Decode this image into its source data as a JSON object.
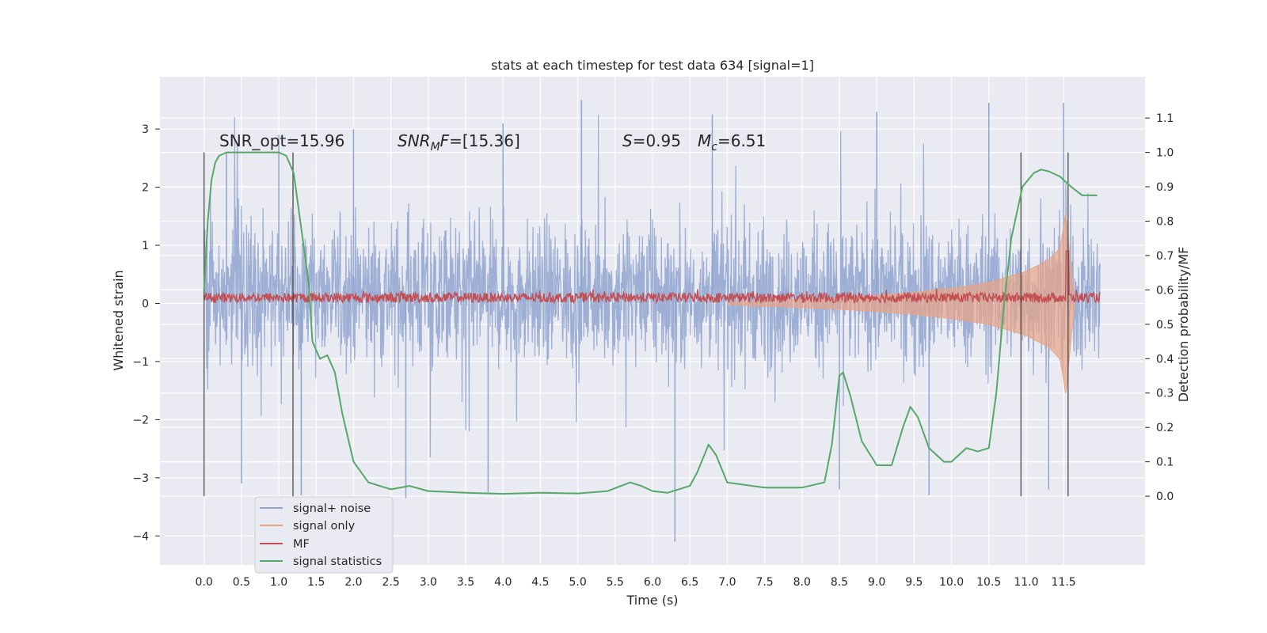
{
  "chart_data": {
    "type": "line",
    "title": "stats at each timestep for test data 634 [signal=1]",
    "xlabel": "Time (s)",
    "ylabel_left": "Whitened strain",
    "ylabel_right": "Detection probability/MF",
    "xlim": [
      -0.59,
      12.59
    ],
    "ylim_left": [
      -4.5,
      3.9
    ],
    "ylim_right": [
      -0.2,
      1.22
    ],
    "x_ticks": [
      "0.0",
      "0.5",
      "1.0",
      "1.5",
      "2.0",
      "2.5",
      "3.0",
      "3.5",
      "4.0",
      "4.5",
      "5.0",
      "5.5",
      "6.0",
      "6.5",
      "7.0",
      "7.5",
      "8.0",
      "8.5",
      "9.0",
      "9.5",
      "10.0",
      "10.5",
      "11.0",
      "11.5"
    ],
    "y_ticks_left": [
      "3",
      "2",
      "1",
      "0",
      "−1",
      "−2",
      "−3",
      "−4"
    ],
    "y_ticks_right": [
      "1.1",
      "1.0",
      "0.9",
      "0.8",
      "0.7",
      "0.6",
      "0.5",
      "0.4",
      "0.3",
      "0.2",
      "0.1",
      "0.0"
    ],
    "grid": true,
    "legend_placement": "lower-left",
    "annotations": {
      "snr_opt": "SNR_opt=15.96",
      "snr_mf_label": "SNR",
      "snr_mf_sub": "M",
      "snr_mf_rest": "F",
      "snr_mf_value": "=[15.36]",
      "s_label": "S",
      "s_value": "=0.95",
      "mc_label": "M",
      "mc_sub": "c",
      "mc_value": "=6.51"
    },
    "vertical_markers": [
      0.0,
      1.19,
      10.93,
      11.56
    ],
    "series": [
      {
        "name": "signal+ noise",
        "color": "#8fa5cf",
        "envelope_note": "dense noise trace, typical range about -2.3 to 2.6 strain",
        "x_range": [
          0.0,
          11.99
        ],
        "upper_peaks": [
          [
            0.3,
            2.6
          ],
          [
            1.0,
            2.9
          ],
          [
            2.0,
            3.0
          ],
          [
            4.0,
            3.1
          ],
          [
            5.05,
            3.5
          ],
          [
            6.8,
            3.25
          ],
          [
            9.0,
            3.3
          ],
          [
            10.5,
            3.45
          ],
          [
            11.5,
            3.45
          ]
        ],
        "lower_peaks": [
          [
            0.5,
            -3.1
          ],
          [
            1.3,
            -3.3
          ],
          [
            2.7,
            -3.35
          ],
          [
            3.8,
            -3.25
          ],
          [
            6.3,
            -4.1
          ],
          [
            8.5,
            -3.2
          ],
          [
            9.7,
            -3.3
          ],
          [
            11.3,
            -3.2
          ]
        ]
      },
      {
        "name": "signal only",
        "color": "#e8a487",
        "x": [
          7.0,
          7.5,
          8.0,
          8.5,
          9.0,
          9.5,
          10.0,
          10.5,
          11.0,
          11.3,
          11.45,
          11.5,
          11.53,
          11.6,
          11.65
        ],
        "amplitude": [
          0.02,
          0.05,
          0.07,
          0.1,
          0.14,
          0.19,
          0.26,
          0.36,
          0.55,
          0.75,
          0.95,
          1.3,
          1.6,
          0.6,
          0.05
        ]
      },
      {
        "name": "MF",
        "color": "#c44e52",
        "level": 0.1,
        "spike": [
          11.55,
          0.9
        ]
      },
      {
        "name": "signal statistics",
        "color": "#55a868",
        "axis": "right",
        "x": [
          0.0,
          0.05,
          0.1,
          0.15,
          0.2,
          0.3,
          0.5,
          0.8,
          1.0,
          1.1,
          1.2,
          1.3,
          1.4,
          1.45,
          1.55,
          1.65,
          1.75,
          1.85,
          2.0,
          2.2,
          2.5,
          2.75,
          3.0,
          3.5,
          4.0,
          4.5,
          5.0,
          5.4,
          5.7,
          5.85,
          6.0,
          6.2,
          6.5,
          6.6,
          6.75,
          6.85,
          7.0,
          7.5,
          8.0,
          8.3,
          8.4,
          8.5,
          8.55,
          8.65,
          8.8,
          9.0,
          9.2,
          9.35,
          9.45,
          9.55,
          9.7,
          9.9,
          10.0,
          10.2,
          10.35,
          10.5,
          10.6,
          10.7,
          10.8,
          10.95,
          11.1,
          11.2,
          11.3,
          11.45,
          11.6,
          11.75,
          11.95
        ],
        "values": [
          0.6,
          0.8,
          0.92,
          0.97,
          0.99,
          1.0,
          1.0,
          1.0,
          1.0,
          0.99,
          0.94,
          0.78,
          0.62,
          0.45,
          0.4,
          0.41,
          0.36,
          0.24,
          0.1,
          0.04,
          0.02,
          0.03,
          0.015,
          0.01,
          0.007,
          0.01,
          0.008,
          0.015,
          0.04,
          0.03,
          0.015,
          0.01,
          0.03,
          0.07,
          0.15,
          0.12,
          0.04,
          0.025,
          0.025,
          0.04,
          0.15,
          0.35,
          0.36,
          0.29,
          0.16,
          0.09,
          0.09,
          0.2,
          0.26,
          0.23,
          0.14,
          0.1,
          0.1,
          0.14,
          0.13,
          0.14,
          0.3,
          0.55,
          0.75,
          0.9,
          0.94,
          0.95,
          0.945,
          0.93,
          0.9,
          0.875,
          0.875
        ]
      }
    ],
    "legend": [
      {
        "label": "signal+ noise",
        "color": "#8fa5cf"
      },
      {
        "label": "signal only",
        "color": "#e8a487"
      },
      {
        "label": "MF",
        "color": "#c44e52"
      },
      {
        "label": "signal statistics",
        "color": "#55a868"
      }
    ]
  }
}
